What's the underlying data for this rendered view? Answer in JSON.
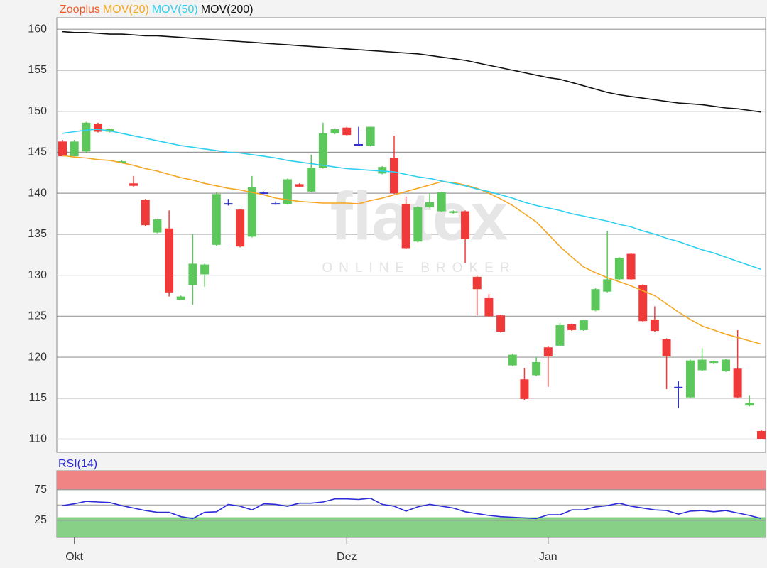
{
  "chart_data": [
    {
      "type": "candlestick",
      "categories": [
        null,
        "Okt",
        null,
        null,
        null,
        null,
        null,
        null,
        null,
        null,
        null,
        null,
        null,
        null,
        null,
        null,
        null,
        null,
        null,
        null,
        null,
        null,
        null,
        null,
        "Dez",
        null,
        null,
        null,
        null,
        null,
        null,
        null,
        null,
        null,
        null,
        null,
        null,
        null,
        null,
        null,
        null,
        "Jan",
        null,
        null,
        null,
        null,
        null,
        null,
        null,
        null,
        null,
        null,
        null,
        null,
        null,
        null,
        null,
        null,
        null,
        null
      ],
      "series": [
        {
          "name": "Zooplus",
          "color": "#f05a28",
          "open": [
            146.3,
            144.5,
            145.1,
            148.5,
            147.5,
            143.8,
            141.2,
            139.2,
            135.2,
            135.7,
            127.0,
            128.8,
            130.1,
            133.7,
            138.7,
            138.0,
            134.7,
            140.0,
            138.7,
            138.7,
            141.1,
            140.2,
            143.1,
            147.3,
            148.0,
            145.9,
            145.8,
            142.4,
            144.3,
            138.7,
            134.1,
            138.3,
            137.8,
            137.6,
            137.8,
            129.8,
            127.2,
            125.1,
            119.0,
            117.3,
            117.8,
            121.2,
            121.4,
            124.0,
            123.3,
            125.7,
            128.0,
            129.5,
            132.6,
            128.8,
            124.6,
            122.2,
            116.3,
            115.1,
            118.4,
            119.3,
            118.3,
            118.6,
            114.1,
            111.0
          ],
          "high": [
            146.5,
            146.5,
            148.7,
            148.6,
            147.9,
            144.0,
            142.1,
            139.3,
            136.9,
            137.9,
            127.5,
            135.0,
            131.4,
            140.1,
            139.3,
            138.1,
            142.1,
            140.2,
            139.0,
            141.8,
            141.2,
            144.7,
            148.6,
            147.9,
            148.1,
            148.1,
            148.1,
            143.3,
            147.0,
            139.6,
            138.4,
            140.0,
            140.2,
            137.9,
            137.9,
            129.9,
            127.7,
            125.2,
            120.4,
            118.7,
            120.0,
            121.3,
            124.2,
            124.1,
            124.6,
            128.4,
            135.4,
            132.2,
            132.7,
            128.9,
            126.2,
            122.3,
            117.1,
            119.7,
            121.1,
            119.6,
            119.8,
            123.3,
            115.3,
            111.1
          ],
          "low": [
            144.5,
            144.5,
            144.9,
            147.4,
            147.4,
            143.7,
            140.8,
            136.0,
            135.1,
            127.4,
            127.0,
            126.4,
            128.6,
            133.6,
            138.5,
            133.4,
            134.6,
            139.9,
            138.6,
            138.6,
            140.7,
            140.1,
            143.0,
            147.2,
            147.0,
            145.9,
            145.7,
            142.3,
            139.9,
            133.2,
            134.0,
            138.2,
            137.7,
            137.5,
            131.5,
            125.1,
            124.9,
            123.0,
            118.9,
            114.8,
            117.7,
            116.4,
            121.3,
            123.2,
            123.2,
            125.6,
            127.9,
            129.4,
            129.4,
            124.3,
            123.1,
            116.1,
            113.8,
            115.0,
            118.3,
            119.2,
            118.2,
            115.0,
            114.0,
            110.0
          ],
          "close": [
            144.5,
            146.3,
            148.6,
            147.5,
            147.8,
            143.9,
            140.9,
            136.1,
            136.8,
            127.9,
            127.4,
            131.4,
            131.3,
            139.9,
            138.7,
            133.5,
            140.7,
            140.0,
            138.7,
            141.7,
            140.8,
            143.1,
            147.3,
            147.8,
            147.1,
            145.9,
            148.1,
            143.2,
            140.0,
            133.3,
            138.3,
            138.9,
            140.1,
            137.8,
            134.4,
            128.3,
            125.0,
            123.1,
            120.3,
            114.9,
            119.4,
            120.1,
            123.9,
            123.3,
            124.5,
            128.3,
            129.5,
            132.1,
            129.5,
            124.4,
            123.2,
            120.1,
            116.3,
            119.6,
            119.7,
            119.5,
            119.7,
            115.1,
            114.4,
            110.0
          ]
        },
        {
          "name": "MOV(20)",
          "color": "#f5a623",
          "values": [
            144.6,
            144.4,
            144.3,
            144.1,
            144.0,
            143.7,
            143.4,
            143.0,
            142.7,
            142.3,
            141.9,
            141.6,
            141.2,
            140.9,
            140.6,
            140.4,
            140.1,
            139.8,
            139.4,
            139.2,
            139.0,
            138.9,
            138.8,
            138.8,
            138.8,
            138.7,
            139.1,
            139.4,
            139.8,
            140.2,
            140.6,
            141.0,
            141.4,
            141.3,
            141.0,
            140.6,
            140.0,
            139.3,
            138.5,
            137.5,
            136.5,
            135.0,
            133.5,
            132.2,
            131.0,
            130.3,
            129.7,
            129.2,
            128.7,
            128.1,
            127.5,
            126.5,
            125.5,
            124.6,
            123.8,
            123.3,
            122.8,
            122.4,
            122.0,
            121.6
          ]
        },
        {
          "name": "MOV(50)",
          "color": "#2ed0f0",
          "values": [
            147.3,
            147.5,
            147.7,
            147.8,
            147.6,
            147.3,
            147.0,
            146.7,
            146.4,
            146.1,
            145.8,
            145.6,
            145.4,
            145.2,
            145.0,
            144.9,
            144.7,
            144.5,
            144.3,
            144.0,
            143.8,
            143.6,
            143.4,
            143.2,
            143.0,
            142.9,
            142.8,
            142.7,
            142.6,
            142.3,
            142.0,
            141.8,
            141.5,
            141.2,
            140.9,
            140.5,
            140.2,
            139.8,
            139.4,
            138.9,
            138.5,
            138.2,
            137.9,
            137.5,
            137.2,
            136.9,
            136.6,
            136.2,
            135.9,
            135.4,
            135.0,
            134.5,
            134.1,
            133.6,
            133.1,
            132.7,
            132.2,
            131.7,
            131.2,
            130.7
          ]
        },
        {
          "name": "MOV(200)",
          "color": "#111111",
          "values": [
            159.7,
            159.6,
            159.6,
            159.5,
            159.4,
            159.4,
            159.3,
            159.2,
            159.2,
            159.1,
            159.0,
            158.9,
            158.8,
            158.7,
            158.6,
            158.5,
            158.4,
            158.3,
            158.2,
            158.1,
            158.0,
            157.9,
            157.8,
            157.7,
            157.6,
            157.5,
            157.4,
            157.3,
            157.2,
            157.1,
            157.0,
            156.8,
            156.6,
            156.4,
            156.2,
            155.9,
            155.6,
            155.3,
            155.0,
            154.7,
            154.4,
            154.1,
            153.9,
            153.5,
            153.1,
            152.7,
            152.3,
            152.0,
            151.8,
            151.6,
            151.4,
            151.2,
            151.0,
            150.9,
            150.8,
            150.6,
            150.4,
            150.3,
            150.1,
            149.9
          ]
        }
      ],
      "up_color": "#5cc85c",
      "down_color": "#f03a3a",
      "doji_color": "#3030d0",
      "ylim": [
        108.4,
        161.4
      ],
      "yticks": [
        110,
        115,
        120,
        125,
        130,
        135,
        140,
        145,
        150,
        155,
        160
      ],
      "grid": true,
      "watermark": "flatex",
      "watermark_subtitle": "ONLINE BROKER"
    },
    {
      "type": "line",
      "series": [
        {
          "name": "RSI(14)",
          "color": "#2b2bd8",
          "values": [
            49,
            52,
            56,
            55,
            54,
            49,
            45,
            41,
            38,
            38,
            31,
            28,
            38,
            39,
            51,
            48,
            42,
            52,
            51,
            48,
            53,
            53,
            55,
            60,
            60,
            59,
            61,
            51,
            48,
            40,
            47,
            51,
            48,
            45,
            39,
            36,
            33,
            31,
            30,
            29,
            28,
            34,
            34,
            42,
            42,
            47,
            49,
            53,
            48,
            45,
            42,
            41,
            35,
            40,
            41,
            39,
            41,
            37,
            33,
            28
          ]
        }
      ],
      "ylim": [
        -3,
        106
      ],
      "yticks": [
        25,
        75
      ],
      "grid": true,
      "midline": 50,
      "overbought": 75,
      "oversold": 30,
      "overbought_color": "#f08484",
      "oversold_color": "#88d088"
    }
  ]
}
